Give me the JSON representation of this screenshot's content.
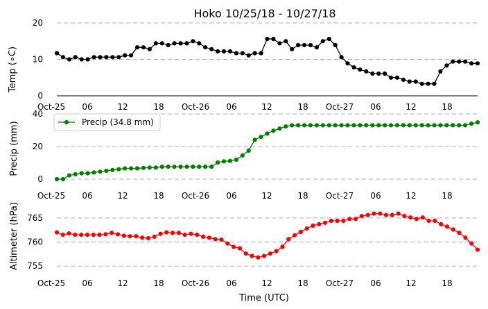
{
  "chart_data": [
    {
      "type": "line",
      "title": "Hoko 10/25/18 - 10/27/18",
      "ylabel": "Temp (∘C)",
      "xlabel": "",
      "ylim": [
        0,
        20
      ],
      "yticks": [
        "0",
        "10",
        "20"
      ],
      "x_tick_labels": [
        "Oct-25",
        "06",
        "12",
        "18",
        "Oct-26",
        "06",
        "12",
        "18",
        "Oct-27",
        "06",
        "12",
        "18"
      ],
      "grid": "horizontal dashed",
      "color": "#000000",
      "series": [
        {
          "values": [
            11.7,
            10.6,
            10.0,
            10.6,
            10.0,
            10.0,
            10.6,
            10.6,
            10.6,
            10.6,
            10.6,
            11.1,
            11.1,
            13.3,
            13.3,
            12.8,
            14.4,
            14.4,
            13.9,
            14.4,
            14.4,
            14.4,
            15.0,
            14.4,
            13.3,
            12.8,
            12.2,
            12.2,
            12.2,
            11.7,
            11.7,
            11.1,
            11.7,
            11.7,
            15.6,
            15.6,
            14.4,
            15.0,
            12.8,
            13.9,
            13.9,
            13.9,
            13.3,
            15.0,
            15.6,
            13.9,
            10.6,
            8.9,
            7.8,
            7.2,
            6.7,
            6.1,
            6.1,
            6.1,
            5.0,
            5.0,
            4.4,
            3.9,
            3.9,
            3.3,
            3.3,
            3.3,
            6.7,
            8.3,
            9.4,
            9.4,
            9.4,
            8.9,
            8.9
          ]
        }
      ]
    },
    {
      "type": "line",
      "title": "",
      "ylabel": "Precip (mm)",
      "xlabel": "",
      "ylim": [
        0,
        40
      ],
      "yticks": [
        "0",
        "20",
        "40"
      ],
      "x_tick_labels": [
        "Oct-25",
        "06",
        "12",
        "18",
        "Oct-26",
        "06",
        "12",
        "18",
        "Oct-27",
        "06",
        "12",
        "18"
      ],
      "grid": "horizontal dashed",
      "legend": "top-left",
      "color": "#008000",
      "series": [
        {
          "name": "Precip (34.8 mm)",
          "values": [
            0.0,
            0.0,
            2.3,
            3.0,
            3.6,
            3.6,
            4.1,
            4.6,
            5.1,
            5.6,
            6.1,
            6.6,
            6.6,
            6.6,
            6.9,
            7.1,
            7.1,
            7.6,
            7.6,
            7.6,
            7.6,
            7.6,
            7.6,
            7.6,
            7.6,
            7.6,
            10.2,
            10.9,
            11.2,
            11.9,
            14.5,
            17.5,
            24.1,
            25.9,
            27.9,
            29.7,
            31.0,
            32.3,
            33.0,
            33.0,
            33.0,
            33.0,
            33.0,
            33.0,
            33.0,
            33.0,
            33.0,
            33.0,
            33.0,
            33.0,
            33.0,
            33.0,
            33.0,
            33.0,
            33.0,
            33.0,
            33.0,
            33.0,
            33.0,
            33.0,
            33.0,
            33.0,
            33.0,
            33.0,
            33.0,
            33.0,
            33.0,
            34.0,
            34.8
          ]
        }
      ]
    },
    {
      "type": "line",
      "title": "",
      "ylabel": "Altimeter (hPa)",
      "xlabel": "Time (UTC)",
      "ylim": [
        752,
        767
      ],
      "yticks": [
        "755",
        "760",
        "765"
      ],
      "x_tick_labels": [
        "Oct-25",
        "06",
        "12",
        "18",
        "Oct-26",
        "06",
        "12",
        "18",
        "Oct-27",
        "06",
        "12",
        "18"
      ],
      "grid": "horizontal dashed",
      "color": "#ff0000",
      "series": [
        {
          "values": [
            762.0,
            761.5,
            761.8,
            761.5,
            761.5,
            761.5,
            761.5,
            761.5,
            761.6,
            761.9,
            761.6,
            761.3,
            761.2,
            761.2,
            760.9,
            760.8,
            761.1,
            761.7,
            762.0,
            761.9,
            761.9,
            761.5,
            761.7,
            761.5,
            761.1,
            760.9,
            760.6,
            760.5,
            759.7,
            759.0,
            758.7,
            757.6,
            757.1,
            756.8,
            757.1,
            757.6,
            758.1,
            759.0,
            760.6,
            761.4,
            762.1,
            762.8,
            763.4,
            763.7,
            764.0,
            764.4,
            764.4,
            764.4,
            764.8,
            764.8,
            765.4,
            765.6,
            765.9,
            765.9,
            765.6,
            765.6,
            765.9,
            765.4,
            765.1,
            764.8,
            765.1,
            764.4,
            764.4,
            763.7,
            763.2,
            762.6,
            761.9,
            760.9,
            759.7,
            758.4
          ]
        }
      ]
    }
  ]
}
